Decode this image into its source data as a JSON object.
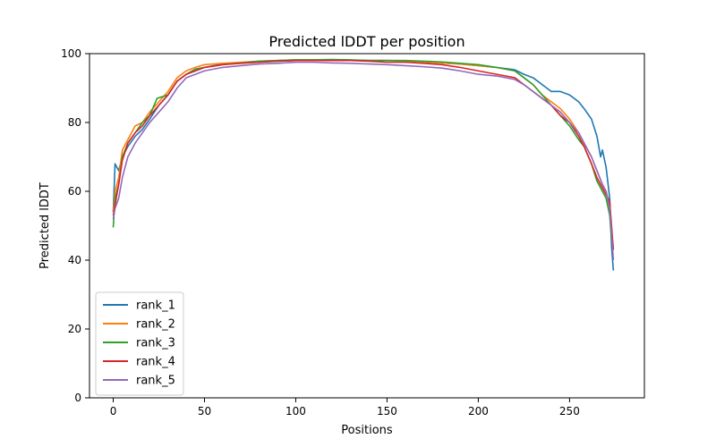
{
  "chart_data": {
    "type": "line",
    "title": "Predicted lDDT per position",
    "xlabel": "Positions",
    "ylabel": "Predicted lDDT",
    "xlim": [
      -13,
      291
    ],
    "ylim": [
      0,
      100
    ],
    "xticks": [
      0,
      50,
      100,
      150,
      200,
      250
    ],
    "yticks": [
      0,
      20,
      40,
      60,
      80,
      100
    ],
    "grid": false,
    "legend_position": "lower-left",
    "series": [
      {
        "name": "rank_1",
        "color": "#1f77b4",
        "points": [
          [
            0,
            54
          ],
          [
            1,
            68
          ],
          [
            3,
            66
          ],
          [
            5,
            70
          ],
          [
            8,
            73
          ],
          [
            12,
            76
          ],
          [
            16,
            78
          ],
          [
            20,
            81
          ],
          [
            25,
            85
          ],
          [
            30,
            88
          ],
          [
            35,
            92
          ],
          [
            40,
            94
          ],
          [
            45,
            95
          ],
          [
            50,
            96
          ],
          [
            60,
            97
          ],
          [
            70,
            97.3
          ],
          [
            80,
            97.6
          ],
          [
            90,
            97.8
          ],
          [
            100,
            98
          ],
          [
            110,
            98
          ],
          [
            120,
            98
          ],
          [
            130,
            98
          ],
          [
            140,
            98
          ],
          [
            150,
            98
          ],
          [
            160,
            97.9
          ],
          [
            170,
            97.6
          ],
          [
            180,
            97.3
          ],
          [
            190,
            97
          ],
          [
            200,
            96.5
          ],
          [
            210,
            96
          ],
          [
            220,
            95.3
          ],
          [
            225,
            94
          ],
          [
            230,
            93
          ],
          [
            235,
            91
          ],
          [
            240,
            89
          ],
          [
            245,
            89
          ],
          [
            250,
            88
          ],
          [
            255,
            86
          ],
          [
            258,
            84
          ],
          [
            262,
            81
          ],
          [
            265,
            76
          ],
          [
            267,
            70
          ],
          [
            268,
            72
          ],
          [
            270,
            67
          ],
          [
            272,
            58
          ],
          [
            273,
            44
          ],
          [
            274,
            37
          ]
        ]
      },
      {
        "name": "rank_2",
        "color": "#ff7f0e",
        "points": [
          [
            0,
            54
          ],
          [
            1,
            60
          ],
          [
            3,
            64
          ],
          [
            5,
            72
          ],
          [
            8,
            75
          ],
          [
            12,
            79
          ],
          [
            16,
            80
          ],
          [
            20,
            83
          ],
          [
            25,
            86
          ],
          [
            30,
            89
          ],
          [
            35,
            93
          ],
          [
            40,
            95
          ],
          [
            45,
            96
          ],
          [
            50,
            96.8
          ],
          [
            60,
            97.2
          ],
          [
            70,
            97.5
          ],
          [
            80,
            97.8
          ],
          [
            90,
            98
          ],
          [
            100,
            98.2
          ],
          [
            110,
            98.2
          ],
          [
            120,
            98.2
          ],
          [
            130,
            98.1
          ],
          [
            140,
            98
          ],
          [
            150,
            98
          ],
          [
            160,
            97.9
          ],
          [
            170,
            97.6
          ],
          [
            180,
            97.3
          ],
          [
            190,
            97
          ],
          [
            200,
            96.5
          ],
          [
            210,
            96
          ],
          [
            220,
            95
          ],
          [
            225,
            93
          ],
          [
            230,
            91
          ],
          [
            235,
            88
          ],
          [
            240,
            86
          ],
          [
            245,
            84
          ],
          [
            250,
            81
          ],
          [
            255,
            77
          ],
          [
            258,
            74
          ],
          [
            262,
            70
          ],
          [
            265,
            66
          ],
          [
            268,
            62
          ],
          [
            270,
            60
          ],
          [
            272,
            56
          ],
          [
            273,
            48
          ],
          [
            274,
            43
          ]
        ]
      },
      {
        "name": "rank_3",
        "color": "#2ca02c",
        "points": [
          [
            0,
            49.5
          ],
          [
            1,
            58
          ],
          [
            3,
            62
          ],
          [
            5,
            70
          ],
          [
            8,
            74
          ],
          [
            12,
            77
          ],
          [
            16,
            80
          ],
          [
            20,
            82
          ],
          [
            24,
            87
          ],
          [
            30,
            88
          ],
          [
            35,
            92
          ],
          [
            40,
            94
          ],
          [
            45,
            95.5
          ],
          [
            50,
            96
          ],
          [
            60,
            96.8
          ],
          [
            70,
            97.3
          ],
          [
            80,
            97.8
          ],
          [
            90,
            98
          ],
          [
            100,
            98.2
          ],
          [
            110,
            98.2
          ],
          [
            120,
            98.3
          ],
          [
            130,
            98.2
          ],
          [
            140,
            98
          ],
          [
            150,
            98
          ],
          [
            160,
            98
          ],
          [
            170,
            97.8
          ],
          [
            180,
            97.6
          ],
          [
            190,
            97.2
          ],
          [
            200,
            96.8
          ],
          [
            210,
            96
          ],
          [
            220,
            95
          ],
          [
            225,
            93
          ],
          [
            230,
            91
          ],
          [
            235,
            88
          ],
          [
            240,
            85
          ],
          [
            245,
            82
          ],
          [
            250,
            79
          ],
          [
            255,
            75
          ],
          [
            258,
            73
          ],
          [
            262,
            68
          ],
          [
            265,
            63
          ],
          [
            268,
            60
          ],
          [
            270,
            58
          ],
          [
            272,
            53
          ],
          [
            273,
            46
          ],
          [
            274,
            43
          ]
        ]
      },
      {
        "name": "rank_4",
        "color": "#d62728",
        "points": [
          [
            0,
            53
          ],
          [
            1,
            56
          ],
          [
            3,
            62
          ],
          [
            5,
            69
          ],
          [
            8,
            74
          ],
          [
            12,
            77
          ],
          [
            16,
            79
          ],
          [
            20,
            82
          ],
          [
            25,
            85
          ],
          [
            30,
            88
          ],
          [
            35,
            92
          ],
          [
            40,
            94
          ],
          [
            45,
            95
          ],
          [
            50,
            96
          ],
          [
            60,
            96.8
          ],
          [
            70,
            97.2
          ],
          [
            80,
            97.5
          ],
          [
            90,
            97.8
          ],
          [
            100,
            98
          ],
          [
            110,
            98
          ],
          [
            120,
            98
          ],
          [
            130,
            98
          ],
          [
            140,
            97.8
          ],
          [
            150,
            97.5
          ],
          [
            160,
            97.5
          ],
          [
            170,
            97.2
          ],
          [
            180,
            96.8
          ],
          [
            190,
            96
          ],
          [
            200,
            95
          ],
          [
            210,
            94
          ],
          [
            220,
            93
          ],
          [
            225,
            91
          ],
          [
            230,
            89
          ],
          [
            235,
            87
          ],
          [
            240,
            85
          ],
          [
            245,
            82
          ],
          [
            250,
            80
          ],
          [
            255,
            76
          ],
          [
            258,
            73
          ],
          [
            262,
            68
          ],
          [
            265,
            64
          ],
          [
            268,
            61
          ],
          [
            270,
            59
          ],
          [
            272,
            57
          ],
          [
            273,
            50
          ],
          [
            274,
            43
          ]
        ]
      },
      {
        "name": "rank_5",
        "color": "#9467bd",
        "points": [
          [
            0,
            52
          ],
          [
            1,
            55
          ],
          [
            3,
            58
          ],
          [
            5,
            64
          ],
          [
            8,
            70
          ],
          [
            12,
            74
          ],
          [
            16,
            77
          ],
          [
            20,
            80
          ],
          [
            25,
            83
          ],
          [
            30,
            86
          ],
          [
            35,
            90
          ],
          [
            40,
            93
          ],
          [
            45,
            94
          ],
          [
            50,
            95
          ],
          [
            60,
            96
          ],
          [
            70,
            96.5
          ],
          [
            80,
            97
          ],
          [
            90,
            97.2
          ],
          [
            100,
            97.5
          ],
          [
            110,
            97.5
          ],
          [
            120,
            97.3
          ],
          [
            130,
            97.2
          ],
          [
            140,
            97
          ],
          [
            150,
            96.8
          ],
          [
            160,
            96.5
          ],
          [
            170,
            96.2
          ],
          [
            180,
            95.8
          ],
          [
            190,
            95
          ],
          [
            200,
            94
          ],
          [
            210,
            93.5
          ],
          [
            220,
            92.5
          ],
          [
            225,
            91
          ],
          [
            230,
            89
          ],
          [
            235,
            87
          ],
          [
            240,
            85
          ],
          [
            245,
            83
          ],
          [
            250,
            80
          ],
          [
            255,
            77
          ],
          [
            258,
            74
          ],
          [
            262,
            70
          ],
          [
            265,
            66
          ],
          [
            268,
            62
          ],
          [
            270,
            60
          ],
          [
            272,
            55
          ],
          [
            273,
            48
          ],
          [
            274,
            40
          ]
        ]
      }
    ]
  }
}
